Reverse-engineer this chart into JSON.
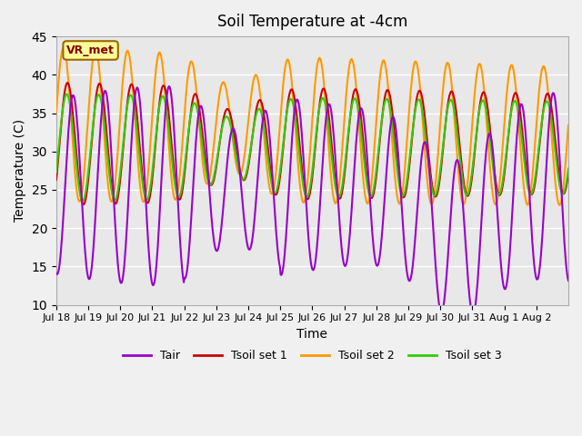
{
  "title": "Soil Temperature at -4cm",
  "xlabel": "Time",
  "ylabel": "Temperature (C)",
  "ylim": [
    10,
    45
  ],
  "n_days": 16,
  "background_color": "#f0f0f0",
  "plot_bg": "#e8e8e8",
  "colors": {
    "Tair": "#9900cc",
    "Tsoil1": "#cc0000",
    "Tsoil2": "#ff9900",
    "Tsoil3": "#33cc00"
  },
  "legend_labels": [
    "Tair",
    "Tsoil set 1",
    "Tsoil set 2",
    "Tsoil set 3"
  ],
  "annotation_text": "VR_met",
  "annotation_color": "#880000",
  "annotation_bg": "#ffff99",
  "tick_labels": [
    "Jul 18",
    "Jul 19",
    "Jul 20",
    "Jul 21",
    "Jul 22",
    "Jul 23",
    "Jul 24",
    "Jul 25",
    "Jul 26",
    "Jul 27",
    "Jul 28",
    "Jul 29",
    "Jul 30",
    "Jul 31",
    "Aug 1",
    "Aug 2"
  ],
  "grid_color": "#ffffff",
  "yticks": [
    10,
    15,
    20,
    25,
    30,
    35,
    40,
    45
  ]
}
